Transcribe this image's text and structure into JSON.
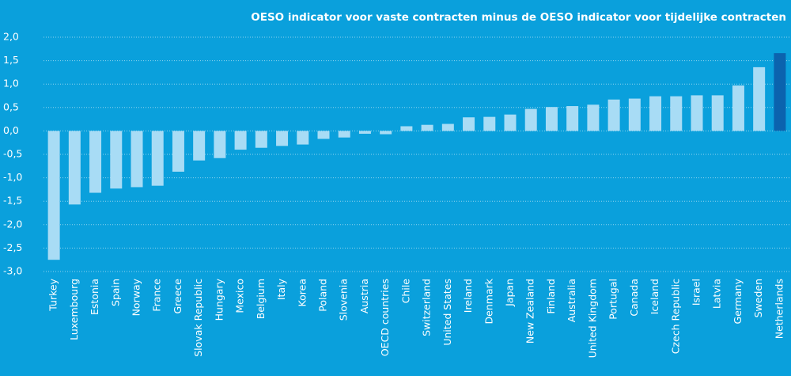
{
  "chart_data": {
    "type": "bar",
    "title": "OESO indicator voor vaste contracten minus de OESO indicator voor tijdelijke contracten",
    "categories": [
      "Turkey",
      "Luxembourg",
      "Estonia",
      "Spain",
      "Norway",
      "France",
      "Greece",
      "Slovak Republic",
      "Hungary",
      "Mexico",
      "Belgium",
      "Italy",
      "Korea",
      "Poland",
      "Slovenia",
      "Austria",
      "OECD countries",
      "Chile",
      "Switzerland",
      "United States",
      "Ireland",
      "Denmark",
      "Japan",
      "New Zealand",
      "Finland",
      "Australia",
      "United Kingdom",
      "Portugal",
      "Canada",
      "Iceland",
      "Czech Republic",
      "Israel",
      "Latvia",
      "Germany",
      "Sweden",
      "Netherlands"
    ],
    "values": [
      -2.75,
      -1.57,
      -1.32,
      -1.23,
      -1.2,
      -1.17,
      -0.87,
      -0.63,
      -0.58,
      -0.4,
      -0.36,
      -0.32,
      -0.29,
      -0.17,
      -0.14,
      -0.06,
      -0.07,
      0.1,
      0.13,
      0.15,
      0.29,
      0.3,
      0.35,
      0.47,
      0.51,
      0.53,
      0.56,
      0.67,
      0.69,
      0.74,
      0.74,
      0.76,
      0.76,
      0.97,
      1.36,
      1.66
    ],
    "colors": [
      "#a8dcf5",
      "#a8dcf5",
      "#a8dcf5",
      "#a8dcf5",
      "#a8dcf5",
      "#a8dcf5",
      "#a8dcf5",
      "#a8dcf5",
      "#a8dcf5",
      "#a8dcf5",
      "#a8dcf5",
      "#a8dcf5",
      "#a8dcf5",
      "#a8dcf5",
      "#a8dcf5",
      "#a8dcf5",
      "#a8dcf5",
      "#a8dcf5",
      "#a8dcf5",
      "#a8dcf5",
      "#a8dcf5",
      "#a8dcf5",
      "#a8dcf5",
      "#a8dcf5",
      "#a8dcf5",
      "#a8dcf5",
      "#a8dcf5",
      "#a8dcf5",
      "#a8dcf5",
      "#a8dcf5",
      "#a8dcf5",
      "#a8dcf5",
      "#a8dcf5",
      "#a8dcf5",
      "#a8dcf5",
      "#0b63ae"
    ],
    "ylim": [
      -3,
      2
    ],
    "yticks": [
      {
        "value": 2,
        "label": "2,0"
      },
      {
        "value": 1.5,
        "label": "1,5"
      },
      {
        "value": 1,
        "label": "1,0"
      },
      {
        "value": 0.5,
        "label": "0,5"
      },
      {
        "value": 0,
        "label": "0,0"
      },
      {
        "value": -0.5,
        "label": "-0,5"
      },
      {
        "value": -1,
        "label": "-1,0"
      },
      {
        "value": -1.5,
        "label": "-1,5"
      },
      {
        "value": -2,
        "label": "-2,0"
      },
      {
        "value": -2.5,
        "label": "-2,5"
      },
      {
        "value": -3,
        "label": "-3,0"
      }
    ],
    "grid": true
  }
}
